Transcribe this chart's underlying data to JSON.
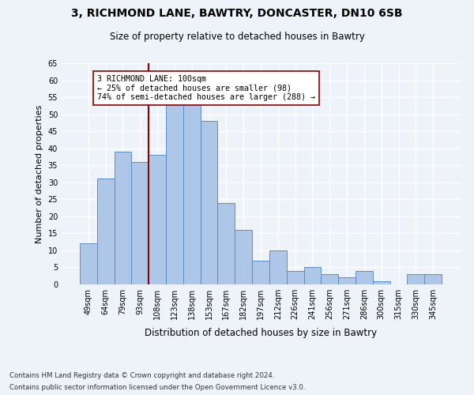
{
  "title1": "3, RICHMOND LANE, BAWTRY, DONCASTER, DN10 6SB",
  "title2": "Size of property relative to detached houses in Bawtry",
  "xlabel": "Distribution of detached houses by size in Bawtry",
  "ylabel": "Number of detached properties",
  "categories": [
    "49sqm",
    "64sqm",
    "79sqm",
    "93sqm",
    "108sqm",
    "123sqm",
    "138sqm",
    "153sqm",
    "167sqm",
    "182sqm",
    "197sqm",
    "212sqm",
    "226sqm",
    "241sqm",
    "256sqm",
    "271sqm",
    "286sqm",
    "300sqm",
    "315sqm",
    "330sqm",
    "345sqm"
  ],
  "values": [
    12,
    31,
    39,
    36,
    38,
    53,
    54,
    48,
    24,
    16,
    7,
    10,
    4,
    5,
    3,
    2,
    4,
    1,
    0,
    3,
    3
  ],
  "bar_color": "#aec6e8",
  "bar_edge_color": "#5a8fc2",
  "vline_color": "#8b0000",
  "annotation_text": "3 RICHMOND LANE: 100sqm\n← 25% of detached houses are smaller (98)\n74% of semi-detached houses are larger (288) →",
  "annotation_box_color": "#ffffff",
  "annotation_box_edge": "#8b0000",
  "ylim": [
    0,
    65
  ],
  "yticks": [
    0,
    5,
    10,
    15,
    20,
    25,
    30,
    35,
    40,
    45,
    50,
    55,
    60,
    65
  ],
  "footer1": "Contains HM Land Registry data © Crown copyright and database right 2024.",
  "footer2": "Contains public sector information licensed under the Open Government Licence v3.0.",
  "background_color": "#eef2f9",
  "grid_color": "#ffffff"
}
